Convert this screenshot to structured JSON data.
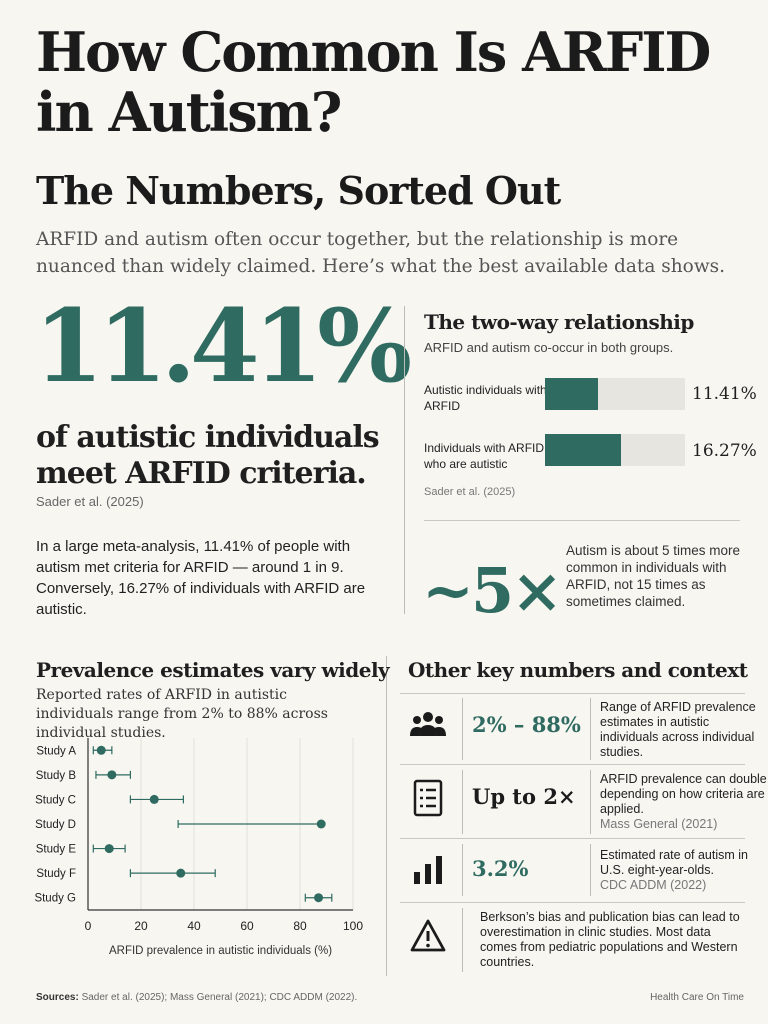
{
  "header": {
    "title": "How Common Is ARFID in Autism?",
    "subtitle": "The Numbers, Sorted Out",
    "intro": "ARFID and autism often occur together, but the relationship is more nuanced than widely claimed. Here’s what the best available data shows."
  },
  "headline": {
    "stat": "11.41%",
    "caption": "of autistic individuals meet ARFID criteria.",
    "source": "Sader et al. (2025)",
    "body": "In a large meta-analysis, 11.41% of people with autism met criteria for ARFID — around 1 in 9. Conversely, 16.27% of individuals with ARFID are autistic."
  },
  "two_way": {
    "title": "The two-way relationship",
    "subtitle": "ARFID and autism co-occur in both groups.",
    "source": "Sader et al. (2025)",
    "bars": [
      {
        "label": "Autistic individuals with ARFID",
        "value": 11.41,
        "value_text": "11.41%"
      },
      {
        "label": "Individuals with ARFID who are autistic",
        "value": 16.27,
        "value_text": "16.27%"
      }
    ]
  },
  "fold": {
    "value": "~5×",
    "text": "Autism is about 5 times more common in individuals with ARFID, not 15 times as sometimes claimed."
  },
  "prevalence": {
    "title": "Prevalence estimates vary widely",
    "subtitle": "Reported rates of ARFID in autistic individuals range from 2% to 88% across individual studies."
  },
  "chart_data": {
    "type": "scatter",
    "subtype": "forest-plot",
    "xlabel": "ARFID prevalence in autistic individuals (%)",
    "xlim": [
      0,
      100
    ],
    "xticks": [
      "0",
      "20",
      "40",
      "60",
      "80",
      "100"
    ],
    "grid": "vertical",
    "categories": [
      "Study A",
      "Study B",
      "Study C",
      "Study D",
      "Study E",
      "Study F",
      "Study G"
    ],
    "points": [
      {
        "study": "Study A",
        "estimate": 5,
        "low": 2,
        "high": 9
      },
      {
        "study": "Study B",
        "estimate": 9,
        "low": 3,
        "high": 16
      },
      {
        "study": "Study C",
        "estimate": 25,
        "low": 16,
        "high": 36
      },
      {
        "study": "Study D",
        "estimate": 88,
        "low": 34,
        "high": 88
      },
      {
        "study": "Study E",
        "estimate": 8,
        "low": 2,
        "high": 14
      },
      {
        "study": "Study F",
        "estimate": 35,
        "low": 16,
        "high": 48
      },
      {
        "study": "Study G",
        "estimate": 87,
        "low": 82,
        "high": 92
      }
    ],
    "colors": {
      "marker": "#2f6b61",
      "axis": "#333333",
      "grid": "#e2e1dc"
    }
  },
  "other": {
    "title": "Other key numbers and context",
    "rows": [
      {
        "icon": "people-icon",
        "value": "2% – 88%",
        "desc": "Range of ARFID prevalence estimates in autistic individuals across individual studies.",
        "source": ""
      },
      {
        "icon": "checklist-icon",
        "value": "Up to 2×",
        "desc": "ARFID prevalence can double depending on how criteria are applied.",
        "source": "Mass General (2021)"
      },
      {
        "icon": "bar-chart-icon",
        "value": "3.2%",
        "desc": "Estimated rate of autism in U.S. eight-year-olds.",
        "source": "CDC ADDM (2022)"
      },
      {
        "icon": "warning-icon",
        "value": "",
        "desc": "Berkson’s bias and publication bias can lead to overestimation in clinic studies. Most data comes from pediatric populations and Western countries.",
        "source": ""
      }
    ]
  },
  "footer": {
    "sources_label": "Sources:",
    "sources": "Sader et al. (2025); Mass General (2021); CDC ADDM (2022).",
    "brand": "Health Care On Time"
  },
  "colors": {
    "accent": "#2f6b61",
    "background": "#f7f6f1",
    "track": "#e6e5e0"
  }
}
